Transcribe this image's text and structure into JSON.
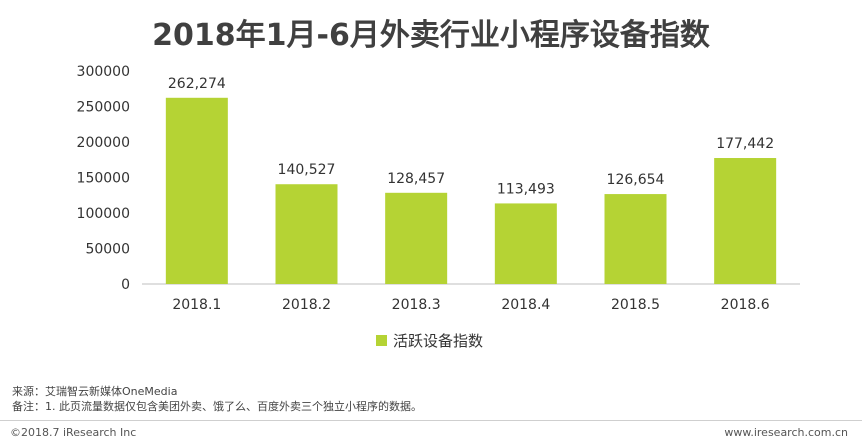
{
  "chart_data": {
    "type": "bar",
    "title": "2018年1月-6月外卖行业小程序设备指数",
    "categories": [
      "2018.1",
      "2018.2",
      "2018.3",
      "2018.4",
      "2018.5",
      "2018.6"
    ],
    "series": [
      {
        "name": "活跃设备指数",
        "values": [
          262274,
          140527,
          128457,
          113493,
          126654,
          177442
        ]
      }
    ],
    "value_labels": [
      "262,274",
      "140,527",
      "128,457",
      "113,493",
      "126,654",
      "177,442"
    ],
    "y_ticks": [
      "0",
      "50000",
      "100000",
      "150000",
      "200000",
      "250000",
      "300000"
    ],
    "ylim": [
      0,
      300000
    ],
    "xlabel": "",
    "ylabel": "",
    "grid": false,
    "legend_position": "bottom",
    "bar_color": "#b5d334"
  },
  "source": "来源：艾瑞智云新媒体OneMedia",
  "note": "备注：1. 此页流量数据仅包含美团外卖、饿了么、百度外卖三个独立小程序的数据。",
  "copyright": "©2018.7 iResearch Inc",
  "website": "www.iresearch.com.cn"
}
